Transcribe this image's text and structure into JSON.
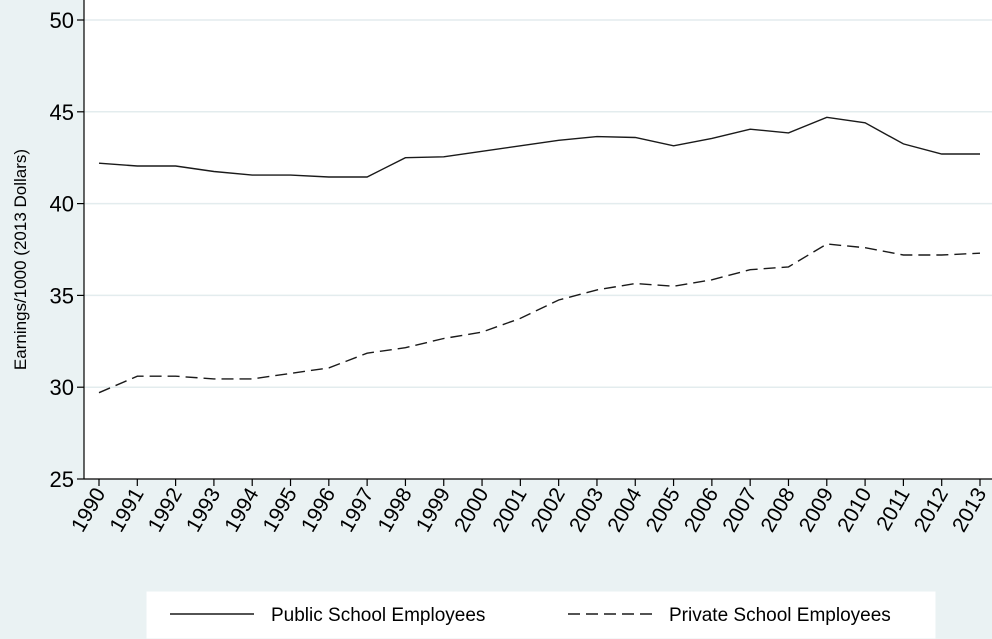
{
  "chart_data": {
    "type": "line",
    "title": "",
    "xlabel": "",
    "ylabel": "Earnings/1000 (2013 Dollars)",
    "ylim": [
      25,
      50
    ],
    "yticks": [
      25,
      30,
      35,
      40,
      45,
      50
    ],
    "categories": [
      "1990",
      "1991",
      "1992",
      "1993",
      "1994",
      "1995",
      "1996",
      "1997",
      "1998",
      "1999",
      "2000",
      "2001",
      "2002",
      "2003",
      "2004",
      "2005",
      "2006",
      "2007",
      "2008",
      "2009",
      "2010",
      "2011",
      "2012",
      "2013"
    ],
    "grid": true,
    "legend_position": "bottom",
    "series": [
      {
        "name": "Public School Employees",
        "line_style": "solid",
        "color": "#1a1a1a",
        "values": [
          42.2,
          42.05,
          42.05,
          41.75,
          41.55,
          41.55,
          41.45,
          41.45,
          42.5,
          42.55,
          42.85,
          43.15,
          43.45,
          43.65,
          43.6,
          43.15,
          43.55,
          44.05,
          43.85,
          44.7,
          44.4,
          43.25,
          42.7,
          42.7
        ]
      },
      {
        "name": "Private School Employees",
        "line_style": "dashed",
        "color": "#1a1a1a",
        "values": [
          29.7,
          30.6,
          30.6,
          30.45,
          30.45,
          30.75,
          31.05,
          31.85,
          32.15,
          32.65,
          33.0,
          33.75,
          34.75,
          35.3,
          35.65,
          35.5,
          35.85,
          36.4,
          36.55,
          37.8,
          37.6,
          37.2,
          37.2,
          37.3
        ]
      }
    ]
  }
}
